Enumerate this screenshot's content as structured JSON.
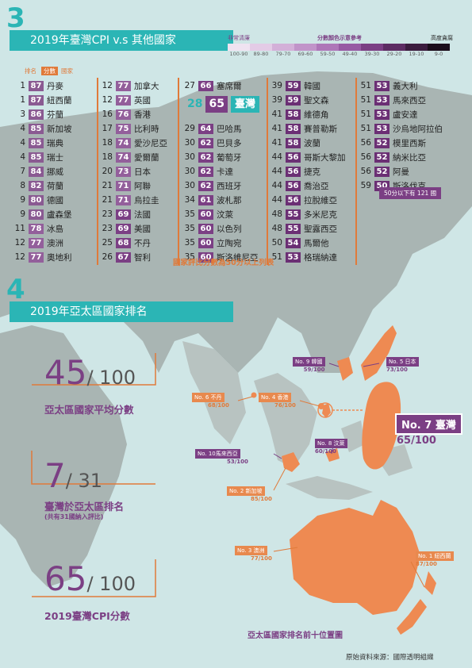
{
  "section3": {
    "number": "3",
    "title": "2019年臺灣CPI v.s 其他國家",
    "legend": {
      "left_label": "非常清廉",
      "mid_label": "分數顏色示意參考",
      "right_label": "高度貪腐",
      "ranges": [
        "100-90",
        "89-80",
        "79-70",
        "69-60",
        "59-50",
        "49-40",
        "39-30",
        "29-20",
        "19-10",
        "9-0"
      ],
      "colors": [
        "#efe3f1",
        "#e3cbe6",
        "#d3b0d8",
        "#c194c9",
        "#ae76b8",
        "#975aa3",
        "#7b3f84",
        "#5d2c63",
        "#3b1c3e",
        "#1b0d1b"
      ]
    },
    "column_headers": {
      "rank": "排名",
      "score": "分數",
      "country": "國家"
    },
    "columns": [
      [
        {
          "rank": "1",
          "score": "87",
          "name": "丹麥"
        },
        {
          "rank": "1",
          "score": "87",
          "name": "紐西蘭"
        },
        {
          "rank": "3",
          "score": "86",
          "name": "芬蘭"
        },
        {
          "rank": "4",
          "score": "85",
          "name": "新加坡"
        },
        {
          "rank": "4",
          "score": "85",
          "name": "瑞典"
        },
        {
          "rank": "4",
          "score": "85",
          "name": "瑞士"
        },
        {
          "rank": "7",
          "score": "84",
          "name": "挪威"
        },
        {
          "rank": "8",
          "score": "82",
          "name": "荷蘭"
        },
        {
          "rank": "9",
          "score": "80",
          "name": "德國"
        },
        {
          "rank": "9",
          "score": "80",
          "name": "盧森堡"
        },
        {
          "rank": "11",
          "score": "78",
          "name": "冰島"
        },
        {
          "rank": "12",
          "score": "77",
          "name": "澳洲"
        },
        {
          "rank": "12",
          "score": "77",
          "name": "奧地利"
        }
      ],
      [
        {
          "rank": "12",
          "score": "77",
          "name": "加拿大"
        },
        {
          "rank": "12",
          "score": "77",
          "name": "英國"
        },
        {
          "rank": "16",
          "score": "76",
          "name": "香港"
        },
        {
          "rank": "17",
          "score": "75",
          "name": "比利時"
        },
        {
          "rank": "18",
          "score": "74",
          "name": "愛沙尼亞"
        },
        {
          "rank": "18",
          "score": "74",
          "name": "愛爾蘭"
        },
        {
          "rank": "20",
          "score": "73",
          "name": "日本"
        },
        {
          "rank": "21",
          "score": "71",
          "name": "阿聯"
        },
        {
          "rank": "21",
          "score": "71",
          "name": "烏拉圭"
        },
        {
          "rank": "23",
          "score": "69",
          "name": "法國"
        },
        {
          "rank": "23",
          "score": "69",
          "name": "美國"
        },
        {
          "rank": "25",
          "score": "68",
          "name": "不丹"
        },
        {
          "rank": "26",
          "score": "67",
          "name": "智利"
        }
      ],
      [
        {
          "rank": "27",
          "score": "66",
          "name": "塞席爾"
        },
        {
          "rank": "",
          "score": "",
          "name": ""
        },
        {
          "rank": "",
          "score": "",
          "name": ""
        },
        {
          "rank": "29",
          "score": "64",
          "name": "巴哈馬"
        },
        {
          "rank": "30",
          "score": "62",
          "name": "巴貝多"
        },
        {
          "rank": "30",
          "score": "62",
          "name": "葡萄牙"
        },
        {
          "rank": "30",
          "score": "62",
          "name": "卡達"
        },
        {
          "rank": "30",
          "score": "62",
          "name": "西班牙"
        },
        {
          "rank": "34",
          "score": "61",
          "name": "波札那"
        },
        {
          "rank": "35",
          "score": "60",
          "name": "汶萊"
        },
        {
          "rank": "35",
          "score": "60",
          "name": "以色列"
        },
        {
          "rank": "35",
          "score": "60",
          "name": "立陶宛"
        },
        {
          "rank": "35",
          "score": "60",
          "name": "斯洛維尼亞"
        }
      ],
      [
        {
          "rank": "39",
          "score": "59",
          "name": "韓國"
        },
        {
          "rank": "39",
          "score": "59",
          "name": "聖文森"
        },
        {
          "rank": "41",
          "score": "58",
          "name": "維德角"
        },
        {
          "rank": "41",
          "score": "58",
          "name": "賽普勒斯"
        },
        {
          "rank": "41",
          "score": "58",
          "name": "波蘭"
        },
        {
          "rank": "44",
          "score": "56",
          "name": "哥斯大黎加"
        },
        {
          "rank": "44",
          "score": "56",
          "name": "捷克"
        },
        {
          "rank": "44",
          "score": "56",
          "name": "喬治亞"
        },
        {
          "rank": "44",
          "score": "56",
          "name": "拉脫維亞"
        },
        {
          "rank": "48",
          "score": "55",
          "name": "多米尼克"
        },
        {
          "rank": "48",
          "score": "55",
          "name": "聖露西亞"
        },
        {
          "rank": "50",
          "score": "54",
          "name": "馬爾他"
        },
        {
          "rank": "51",
          "score": "53",
          "name": "格瑞納達"
        }
      ],
      [
        {
          "rank": "51",
          "score": "53",
          "name": "義大利"
        },
        {
          "rank": "51",
          "score": "53",
          "name": "馬來西亞"
        },
        {
          "rank": "51",
          "score": "53",
          "name": "盧安達"
        },
        {
          "rank": "51",
          "score": "53",
          "name": "沙烏地阿拉伯"
        },
        {
          "rank": "56",
          "score": "52",
          "name": "模里西斯"
        },
        {
          "rank": "56",
          "score": "52",
          "name": "納米比亞"
        },
        {
          "rank": "56",
          "score": "52",
          "name": "阿曼"
        },
        {
          "rank": "59",
          "score": "50",
          "name": "斯洛伐克"
        }
      ]
    ],
    "taiwan_highlight": {
      "rank": "28",
      "score": "65",
      "name": "臺灣"
    },
    "below_50_note": "50分以下有 121 國",
    "footnote": "國家評比分數為50分以上列表"
  },
  "section4": {
    "number": "4",
    "title": "2019年亞太區國家排名",
    "stats": [
      {
        "value": "45",
        "suffix": "/ 100",
        "label": "亞太區國家平均分數",
        "sublabel": ""
      },
      {
        "value": "7",
        "suffix": "/ 31",
        "label": "臺灣於亞太區排名",
        "sublabel": "(共有31國納入評比)"
      },
      {
        "value": "65",
        "suffix": "/ 100",
        "label": "2019臺灣CPI分數",
        "sublabel": ""
      }
    ],
    "map_labels": [
      {
        "tag": "No. 9 韓國",
        "score": "59/100",
        "style": "p"
      },
      {
        "tag": "No. 5 日本",
        "score": "73/100",
        "style": "p"
      },
      {
        "tag": "No. 6 不丹",
        "score": "68/100",
        "style": "o"
      },
      {
        "tag": "No. 4 香港",
        "score": "76/100",
        "style": "o"
      },
      {
        "tag": "No. 8 汶萊",
        "score": "60/100",
        "style": "p"
      },
      {
        "tag": "No. 10馬來西亞",
        "score": "53/100",
        "style": "p"
      },
      {
        "tag": "No. 2 新加坡",
        "score": "85/100",
        "style": "o"
      },
      {
        "tag": "No. 3 澳洲",
        "score": "77/100",
        "style": "o"
      },
      {
        "tag": "No. 1 紐西蘭",
        "score": "87/100",
        "style": "o"
      }
    ],
    "taiwan_label": {
      "tag": "No. 7 臺灣",
      "score": "65/100"
    },
    "map_caption": "亞太區國家排名前十位置圖"
  },
  "source": "原始資料來源：國際透明組織",
  "colors": {
    "teal": "#2bb5b5",
    "purple": "#7b3f84",
    "orange": "#e07a3a",
    "land": "#a9b5b3",
    "sea": "#cfe6e6",
    "highlight": "#ee8a52"
  }
}
